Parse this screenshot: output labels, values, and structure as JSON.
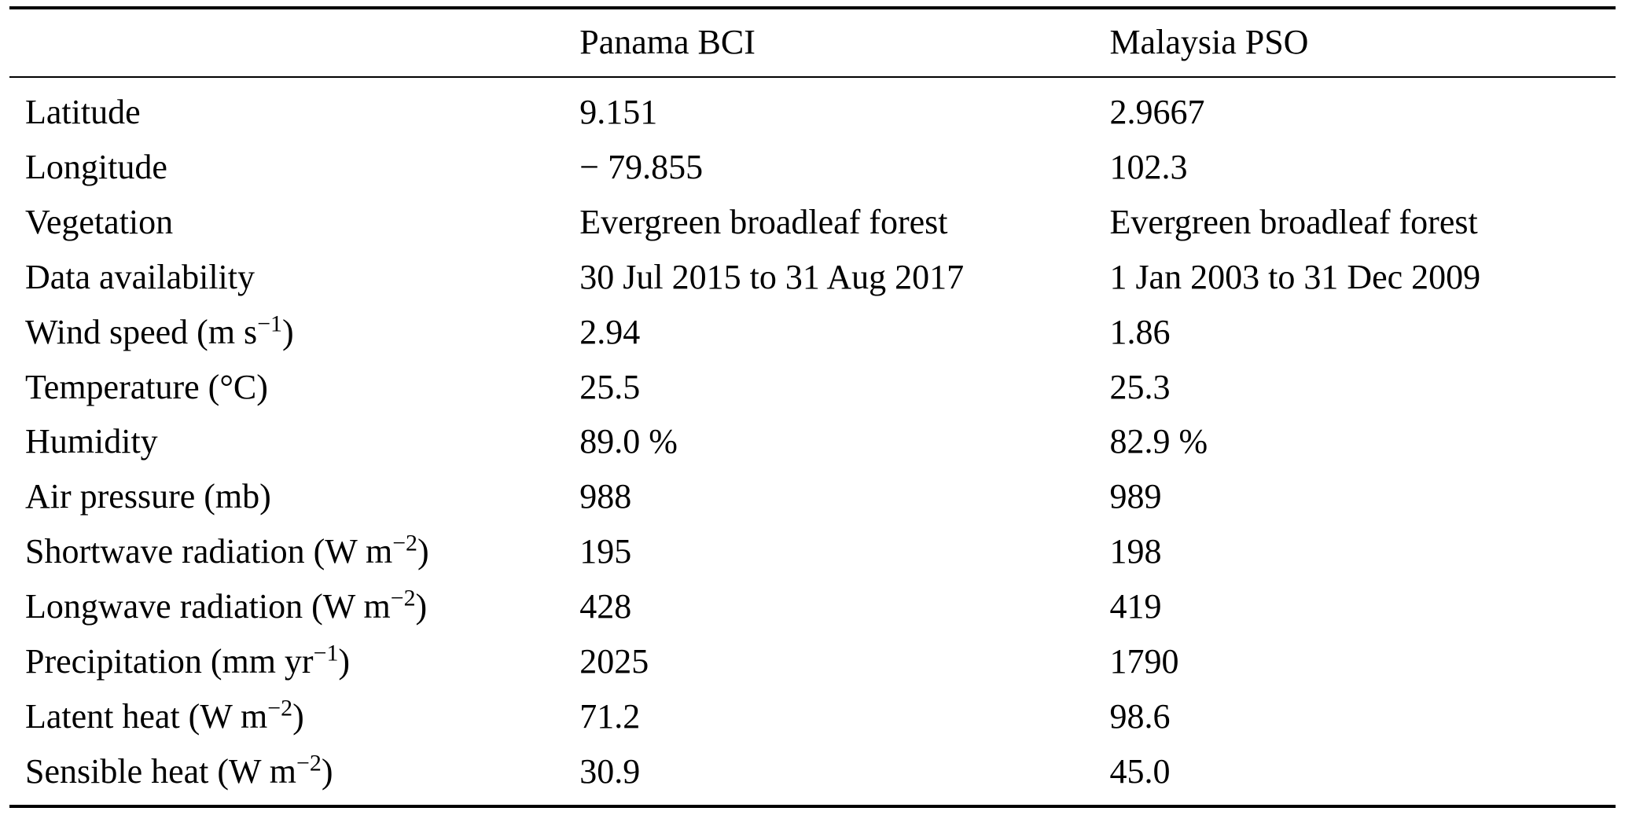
{
  "table": {
    "header": {
      "panama": "Panama BCI",
      "malaysia": "Malaysia PSO"
    },
    "rows": [
      {
        "label": "Latitude",
        "panama": "9.151",
        "malaysia": "2.9667"
      },
      {
        "label": "Longitude",
        "panama": "− 79.855",
        "malaysia": "102.3"
      },
      {
        "label": "Vegetation",
        "panama": "Evergreen broadleaf forest",
        "malaysia": "Evergreen broadleaf forest"
      },
      {
        "label": "Data availability",
        "panama": "30 Jul 2015 to 31 Aug 2017",
        "malaysia": "1 Jan 2003 to 31 Dec 2009"
      },
      {
        "label_pre": "Wind speed (m s",
        "label_sup": "−1",
        "label_post": ")",
        "panama": "2.94",
        "malaysia": "1.86"
      },
      {
        "label": "Temperature (°C)",
        "panama": "25.5",
        "malaysia": "25.3"
      },
      {
        "label": "Humidity",
        "panama": "89.0 %",
        "malaysia": "82.9 %"
      },
      {
        "label": "Air pressure (mb)",
        "panama": "988",
        "malaysia": "989"
      },
      {
        "label_pre": "Shortwave radiation (W m",
        "label_sup": "−2",
        "label_post": ")",
        "panama": "195",
        "malaysia": "198"
      },
      {
        "label_pre": "Longwave radiation (W m",
        "label_sup": "−2",
        "label_post": ")",
        "panama": "428",
        "malaysia": "419"
      },
      {
        "label_pre": "Precipitation (mm yr",
        "label_sup": "−1",
        "label_post": ")",
        "panama": "2025",
        "malaysia": "1790"
      },
      {
        "label_pre": "Latent heat (W m",
        "label_sup": "−2",
        "label_post": ")",
        "panama": "71.2",
        "malaysia": "98.6"
      },
      {
        "label_pre": "Sensible heat (W m",
        "label_sup": "−2",
        "label_post": ")",
        "panama": "30.9",
        "malaysia": "45.0"
      }
    ]
  }
}
